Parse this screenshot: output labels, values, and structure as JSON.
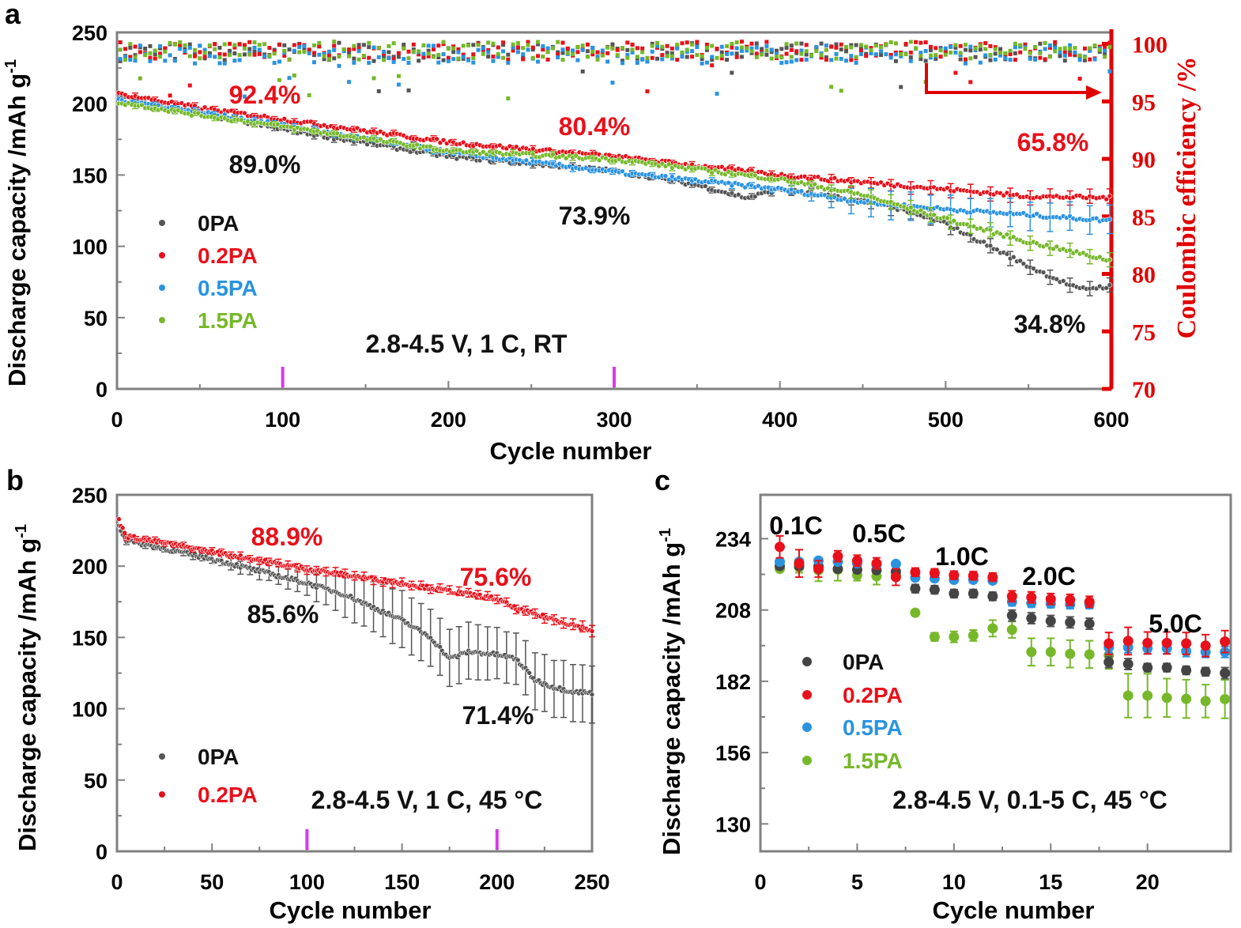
{
  "colors": {
    "0PA": "#555555",
    "0.2PA": "#e8101a",
    "0.5PA": "#2a93e0",
    "1.5PA": "#76b82a",
    "axis": "#808080",
    "ce_axis": "#e00000",
    "marker": "#d63ae8"
  },
  "panel_labels": {
    "a": "a",
    "b": "b",
    "c": "c"
  },
  "chart_data": [
    {
      "panel": "a",
      "type": "scatter",
      "xlabel": "Cycle number",
      "ylabel": "Discharge capacity /mAh g",
      "ylabel_sup": "-1",
      "ylabel_right": "Coulombic efficiency /%",
      "xlim": [
        0,
        600
      ],
      "ylim": [
        0,
        250
      ],
      "ylim_right": [
        70,
        101
      ],
      "xticks": [
        0,
        100,
        200,
        300,
        400,
        500,
        600
      ],
      "yticks": [
        0,
        50,
        100,
        150,
        200,
        250
      ],
      "yticks_right": [
        70,
        75,
        80,
        85,
        90,
        95,
        100
      ],
      "markers_x": [
        100,
        300,
        600
      ],
      "condition": "2.8-4.5 V, 1 C, RT",
      "legend_position": "left",
      "series": [
        {
          "name": "0PA",
          "x": [
            1,
            50,
            100,
            200,
            300,
            350,
            380,
            400,
            460,
            500,
            550,
            580,
            600
          ],
          "y": [
            205,
            193,
            182,
            163,
            153,
            143,
            134,
            140,
            130,
            116,
            86,
            70,
            72
          ],
          "ce": 99.3
        },
        {
          "name": "0.2PA",
          "x": [
            1,
            50,
            100,
            200,
            300,
            400,
            500,
            550,
            600
          ],
          "y": [
            207,
            197,
            189,
            173,
            163,
            150,
            140,
            135,
            134
          ],
          "ce": 99.4
        },
        {
          "name": "0.5PA",
          "x": [
            1,
            50,
            100,
            200,
            300,
            400,
            450,
            500,
            550,
            600
          ],
          "y": [
            203,
            194,
            185,
            166,
            152,
            140,
            131,
            126,
            122,
            118
          ],
          "ce": 99.1
        },
        {
          "name": "1.5PA",
          "x": [
            1,
            50,
            100,
            200,
            300,
            400,
            450,
            500,
            550,
            600
          ],
          "y": [
            201,
            192,
            184,
            167,
            161,
            147,
            136,
            119,
            103,
            90
          ],
          "ce": 99.4
        }
      ],
      "annotations": {
        "r100": "92.4%",
        "b100": "89.0%",
        "r300": "80.4%",
        "b300": "73.9%",
        "r600": "65.8%",
        "b600": "34.8%"
      }
    },
    {
      "panel": "b",
      "type": "scatter",
      "xlabel": "Cycle number",
      "ylabel": "Discharge capacity /mAh g",
      "ylabel_sup": "-1",
      "xlim": [
        0,
        250
      ],
      "ylim": [
        0,
        250
      ],
      "xticks": [
        0,
        50,
        100,
        150,
        200,
        250
      ],
      "yticks": [
        0,
        50,
        100,
        150,
        200,
        250
      ],
      "markers_x": [
        100,
        200
      ],
      "condition": "2.8-4.5 V, 1 C, 45 °C",
      "legend_position": "bottom-left",
      "series": [
        {
          "name": "0PA",
          "x": [
            1,
            5,
            50,
            100,
            120,
            150,
            165,
            175,
            185,
            200,
            210,
            220,
            230,
            240,
            250
          ],
          "y": [
            228,
            218,
            205,
            188,
            180,
            162,
            150,
            135,
            140,
            138,
            135,
            120,
            115,
            112,
            111
          ],
          "err": [
            2,
            2,
            3,
            8,
            15,
            20,
            20,
            20,
            20,
            18,
            18,
            20,
            20,
            20,
            20
          ]
        },
        {
          "name": "0.2PA",
          "x": [
            1,
            5,
            50,
            100,
            150,
            200,
            210,
            250
          ],
          "y": [
            232,
            221,
            210,
            198,
            188,
            177,
            170,
            155
          ],
          "err": [
            2,
            2,
            2,
            3,
            3,
            3,
            3,
            4
          ]
        }
      ],
      "annotations": {
        "r100": "88.9%",
        "b100": "85.6%",
        "r200": "75.6%",
        "b200": "71.4%"
      }
    },
    {
      "panel": "c",
      "type": "scatter",
      "xlabel": "Cycle number",
      "ylabel": "Discharge capacity /mAh g",
      "ylabel_sup": "-1",
      "xlim": [
        0,
        24.3
      ],
      "ylim": [
        120,
        250
      ],
      "xticks": [
        0,
        5,
        10,
        15,
        20
      ],
      "yticks": [
        130,
        156,
        182,
        208,
        234
      ],
      "condition": "2.8-4.5 V, 0.1-5 C, 45 °C",
      "legend_position": "bottom-left",
      "rate_labels": [
        "0.1C",
        "0.5C",
        "1.0C",
        "2.0C",
        "5.0C"
      ],
      "x": [
        1,
        2,
        3,
        4,
        5,
        6,
        7,
        8,
        9,
        10,
        11,
        12,
        13,
        14,
        15,
        16,
        17,
        18,
        19,
        20,
        21,
        22,
        23,
        24
      ],
      "series": [
        {
          "name": "0PA",
          "y": [
            224,
            224,
            224,
            223,
            222.7,
            222.5,
            222,
            215.8,
            215.4,
            214,
            214,
            213,
            206,
            205,
            204,
            203.5,
            203,
            189,
            188.3,
            187,
            187,
            186,
            185.5,
            185
          ],
          "err": [
            1,
            1,
            1,
            1,
            1,
            1,
            1,
            1.5,
            1.5,
            1.5,
            1.5,
            1.5,
            2,
            2,
            2,
            2,
            2,
            2,
            2,
            1.5,
            1.5,
            1.5,
            1.5,
            2
          ]
        },
        {
          "name": "0.2PA",
          "y": [
            231,
            225,
            223,
            227.6,
            226,
            225,
            220,
            221.8,
            221.5,
            220.7,
            220.5,
            220,
            213,
            212.6,
            212,
            211.7,
            211,
            195.8,
            196.7,
            196,
            196,
            195.8,
            195,
            196.5
          ],
          "err": [
            4,
            5,
            3,
            2,
            2,
            2,
            3,
            1.5,
            1.5,
            1.5,
            1.5,
            1.5,
            2,
            2,
            2,
            2,
            2,
            4,
            5,
            4,
            4,
            4,
            4,
            4
          ]
        },
        {
          "name": "0.5PA",
          "y": [
            225.6,
            225.6,
            226,
            225.6,
            225,
            224.5,
            224.8,
            219.8,
            219.5,
            219,
            219,
            218.7,
            211,
            210.5,
            210.3,
            210,
            210,
            194.4,
            194.4,
            194,
            194,
            193,
            192.7,
            192.7
          ],
          "err": [
            1,
            1,
            1,
            1,
            1,
            1,
            1,
            1,
            1,
            1,
            1,
            1,
            1.5,
            1.5,
            1.5,
            1.5,
            1.5,
            2,
            2,
            2,
            2,
            2,
            2,
            2
          ]
        },
        {
          "name": "1.5PA",
          "y": [
            223,
            223.6,
            222.5,
            222.7,
            220.7,
            220.3,
            221,
            207,
            198.2,
            198.2,
            198.7,
            201.3,
            200.8,
            192.7,
            192.7,
            192,
            191.8,
            191.5,
            176.8,
            176.8,
            176,
            175.6,
            174.8,
            175.5
          ],
          "err": [
            1,
            2,
            4,
            4,
            2,
            3,
            2,
            1,
            1.5,
            2,
            2,
            3,
            3,
            5,
            5,
            5,
            5,
            5,
            8,
            8,
            7,
            7,
            6,
            7
          ]
        }
      ]
    }
  ]
}
